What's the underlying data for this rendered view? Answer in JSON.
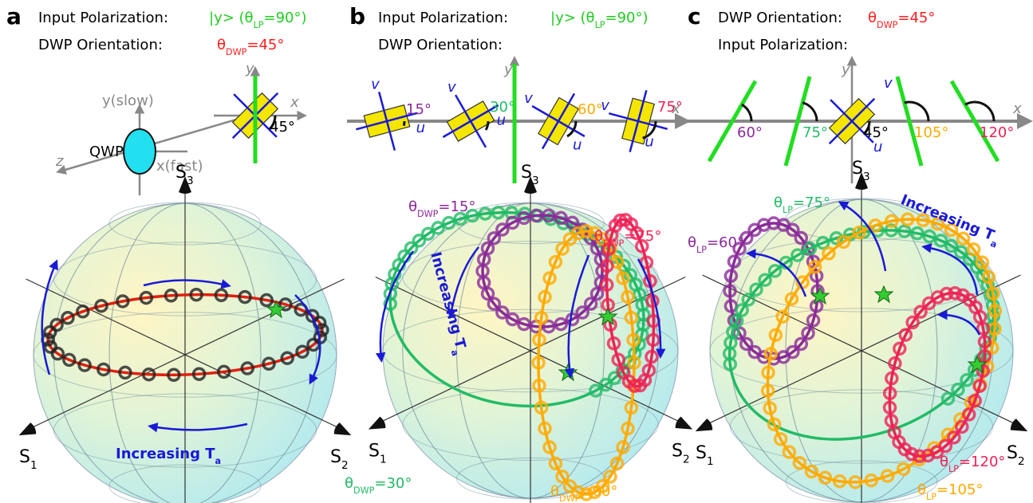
{
  "panel_a": {
    "letter": "a",
    "input_label": "Input Polarization:",
    "input_value": [
      "|y> (θ",
      "LP",
      "=90°)"
    ],
    "dwp_label": "DWP Orientation:",
    "dwp_value": [
      "θ",
      "DWP",
      "=45°"
    ],
    "diagram": {
      "y_slow": "y(slow)",
      "qwp": "QWP",
      "x_fast": "x(fast)",
      "z": "z",
      "y": "y",
      "x": "x",
      "angle": "45°"
    },
    "sphere": {
      "s1": [
        "S",
        "1"
      ],
      "s2": [
        "S",
        "2"
      ],
      "s3": [
        "S",
        "3"
      ]
    },
    "annotation": [
      "Increasing T",
      "a"
    ]
  },
  "panel_b": {
    "letter": "b",
    "input_label": "Input Polarization:",
    "input_value": [
      "|y> (θ",
      "LP",
      "=90°)"
    ],
    "dwp_label": "DWP Orientation:",
    "diagram": {
      "y": "y",
      "x": "x",
      "v": "v",
      "u": "u",
      "angles": [
        "15°",
        "30°",
        "60°",
        "75°"
      ]
    },
    "sphere": {
      "s1": [
        "S",
        "1"
      ],
      "s2": [
        "S",
        "2"
      ],
      "s3": [
        "S",
        "3"
      ]
    },
    "annotation": [
      "Increasing T",
      "a"
    ],
    "traces": [
      [
        "θ",
        "DWP",
        "=15°"
      ],
      [
        "θ",
        "DWP",
        "=30°"
      ],
      [
        "θ",
        "DWP",
        "=60°"
      ],
      [
        "θ",
        "DWP",
        "=75°"
      ]
    ]
  },
  "panel_c": {
    "letter": "c",
    "dwp_label": "DWP Orientation:",
    "dwp_value": [
      "θ",
      "DWP",
      "=45°"
    ],
    "input_label": "Input Polarization:",
    "diagram": {
      "y": "y",
      "x": "x",
      "v": "v",
      "u": "u",
      "angles": [
        "60°",
        "75°",
        "45°",
        "105°",
        "120°"
      ]
    },
    "sphere": {
      "s1": [
        "S",
        "1"
      ],
      "s2": [
        "S",
        "2"
      ],
      "s3": [
        "S",
        "3"
      ]
    },
    "annotation": [
      "Increasing T",
      "a"
    ],
    "traces": [
      [
        "θ",
        "LP",
        "=60°"
      ],
      [
        "θ",
        "LP",
        "=75°"
      ],
      [
        "θ",
        "LP",
        "=105°"
      ],
      [
        "θ",
        "LP",
        "=120°"
      ]
    ]
  }
}
